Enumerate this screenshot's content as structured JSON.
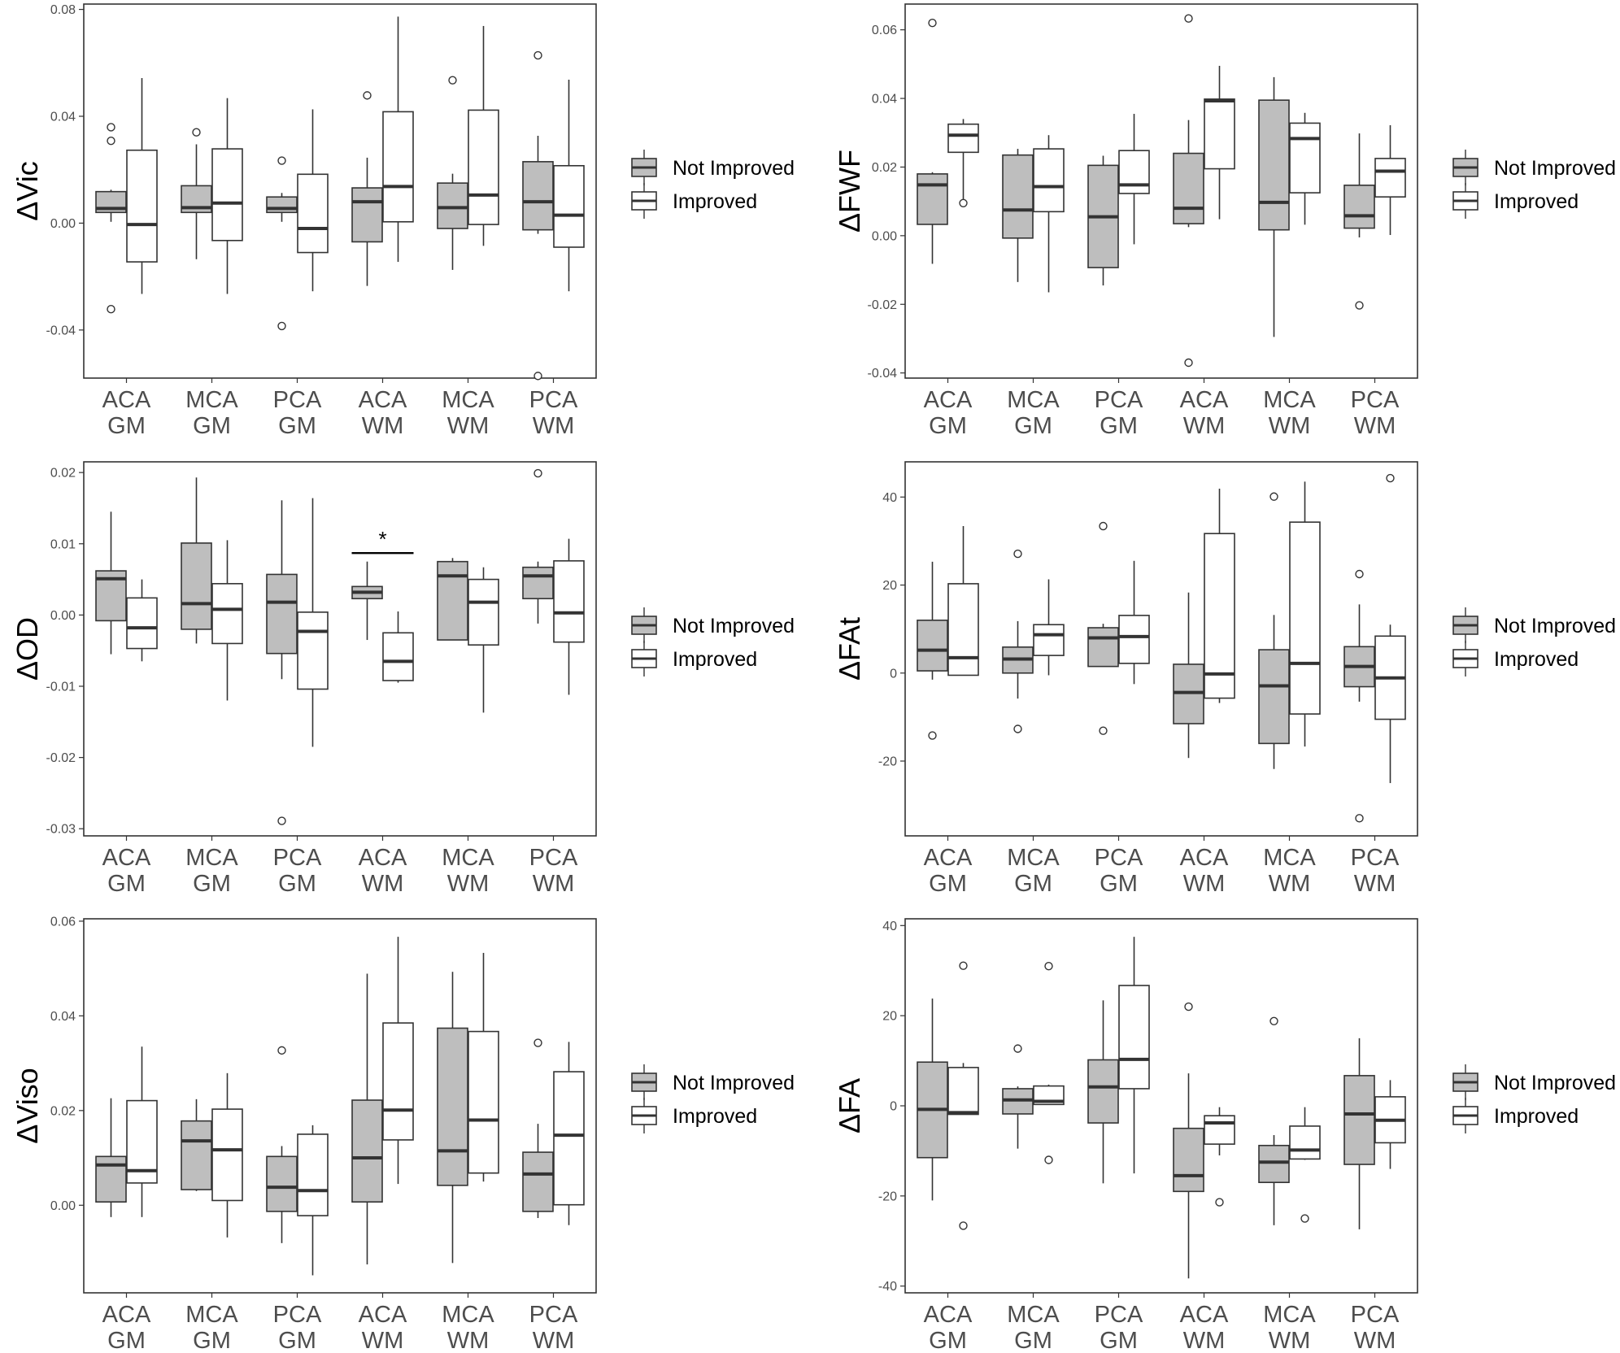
{
  "legend": {
    "labels": [
      "Not Improved",
      "Improved"
    ]
  },
  "colors": {
    "not_improved_fill": "#bebebe",
    "improved_fill": "#ffffff",
    "stroke": "#333333",
    "median": "#333333",
    "panel_border": "#333333"
  },
  "chart_data": [
    {
      "type": "box",
      "ylabel": "ΔVic",
      "ylim": [
        -0.058,
        0.082
      ],
      "yticks": [
        -0.04,
        0.0,
        0.04,
        0.08
      ],
      "ytick_labels": [
        "-0.04",
        "0.00",
        "0.04",
        "0.08"
      ],
      "categories": [
        "ACA\nGM",
        "MCA\nGM",
        "PCA\nGM",
        "ACA\nWM",
        "MCA\nWM",
        "PCA\nWM"
      ],
      "series": [
        {
          "name": "Not Improved",
          "boxes": [
            {
              "lw": 0.0005,
              "q1": 0.004,
              "med": 0.0055,
              "q3": 0.0118,
              "uw": 0.0125,
              "out": [
                0.0359,
                0.0308,
                -0.0322
              ]
            },
            {
              "lw": -0.0135,
              "q1": 0.004,
              "med": 0.0058,
              "q3": 0.014,
              "uw": 0.0295,
              "out": [
                0.034
              ]
            },
            {
              "lw": 0.0005,
              "q1": 0.004,
              "med": 0.0055,
              "q3": 0.0098,
              "uw": 0.0113,
              "out": [
                0.0234,
                -0.0385
              ]
            },
            {
              "lw": -0.0235,
              "q1": -0.007,
              "med": 0.008,
              "q3": 0.0132,
              "uw": 0.0245,
              "out": [
                0.0478
              ]
            },
            {
              "lw": -0.0175,
              "q1": -0.002,
              "med": 0.0058,
              "q3": 0.015,
              "uw": 0.0185,
              "out": [
                0.0535
              ]
            },
            {
              "lw": -0.004,
              "q1": -0.0025,
              "med": 0.008,
              "q3": 0.023,
              "uw": 0.0327,
              "out": [
                0.0628,
                -0.0572
              ]
            }
          ]
        },
        {
          "name": "Improved",
          "boxes": [
            {
              "lw": -0.0265,
              "q1": -0.0145,
              "med": -0.0005,
              "q3": 0.0273,
              "uw": 0.0543,
              "out": []
            },
            {
              "lw": -0.0265,
              "q1": -0.0065,
              "med": 0.0075,
              "q3": 0.0278,
              "uw": 0.0468,
              "out": []
            },
            {
              "lw": -0.0255,
              "q1": -0.011,
              "med": -0.002,
              "q3": 0.0183,
              "uw": 0.0426,
              "out": []
            },
            {
              "lw": -0.0145,
              "q1": 0.0005,
              "med": 0.0137,
              "q3": 0.0417,
              "uw": 0.0773,
              "out": []
            },
            {
              "lw": -0.0085,
              "q1": -0.0005,
              "med": 0.0105,
              "q3": 0.0423,
              "uw": 0.0738,
              "out": []
            },
            {
              "lw": -0.0255,
              "q1": -0.009,
              "med": 0.003,
              "q3": 0.0215,
              "uw": 0.0537,
              "out": []
            }
          ]
        }
      ],
      "annotation": null
    },
    {
      "type": "box",
      "ylabel": "ΔFWF",
      "ylim": [
        -0.0415,
        0.0675
      ],
      "yticks": [
        -0.04,
        -0.02,
        0.0,
        0.02,
        0.04,
        0.06
      ],
      "ytick_labels": [
        "-0.04",
        "-0.02",
        "0.00",
        "0.02",
        "0.04",
        "0.06"
      ],
      "categories": [
        "ACA\nGM",
        "MCA\nGM",
        "PCA\nGM",
        "ACA\nWM",
        "MCA\nWM",
        "PCA\nWM"
      ],
      "series": [
        {
          "name": "Not Improved",
          "boxes": [
            {
              "lw": -0.0082,
              "q1": 0.0033,
              "med": 0.0148,
              "q3": 0.018,
              "uw": 0.0185,
              "out": [
                0.062
              ]
            },
            {
              "lw": -0.0135,
              "q1": -0.0007,
              "med": 0.0075,
              "q3": 0.0235,
              "uw": 0.0253,
              "out": []
            },
            {
              "lw": -0.0145,
              "q1": -0.0093,
              "med": 0.0055,
              "q3": 0.0205,
              "uw": 0.0233,
              "out": []
            },
            {
              "lw": 0.0025,
              "q1": 0.0035,
              "med": 0.008,
              "q3": 0.024,
              "uw": 0.0337,
              "out": [
                0.0633,
                -0.037
              ]
            },
            {
              "lw": -0.0295,
              "q1": 0.0017,
              "med": 0.0097,
              "q3": 0.0395,
              "uw": 0.0462,
              "out": []
            },
            {
              "lw": -0.0005,
              "q1": 0.0022,
              "med": 0.0058,
              "q3": 0.0147,
              "uw": 0.0298,
              "out": [
                -0.0203
              ]
            }
          ]
        },
        {
          "name": "Improved",
          "boxes": [
            {
              "lw": 0.0095,
              "q1": 0.0243,
              "med": 0.0293,
              "q3": 0.0325,
              "uw": 0.034,
              "out": [
                0.0095
              ]
            },
            {
              "lw": -0.0165,
              "q1": 0.007,
              "med": 0.0143,
              "q3": 0.0253,
              "uw": 0.0293,
              "out": []
            },
            {
              "lw": -0.0025,
              "q1": 0.0123,
              "med": 0.0148,
              "q3": 0.0248,
              "uw": 0.0355,
              "out": []
            },
            {
              "lw": 0.0048,
              "q1": 0.0195,
              "med": 0.0393,
              "q3": 0.0398,
              "uw": 0.0495,
              "out": []
            },
            {
              "lw": 0.0032,
              "q1": 0.0125,
              "med": 0.0283,
              "q3": 0.0328,
              "uw": 0.0358,
              "out": []
            },
            {
              "lw": 0.0002,
              "q1": 0.0113,
              "med": 0.0188,
              "q3": 0.0225,
              "uw": 0.0322,
              "out": []
            }
          ]
        }
      ],
      "annotation": null
    },
    {
      "type": "box",
      "ylabel": "ΔOD",
      "ylim": [
        -0.031,
        0.0215
      ],
      "yticks": [
        -0.03,
        -0.02,
        -0.01,
        0.0,
        0.01,
        0.02
      ],
      "ytick_labels": [
        "-0.03",
        "-0.02",
        "-0.01",
        "0.00",
        "0.01",
        "0.02"
      ],
      "categories": [
        "ACA\nGM",
        "MCA\nGM",
        "PCA\nGM",
        "ACA\nWM",
        "MCA\nWM",
        "PCA\nWM"
      ],
      "series": [
        {
          "name": "Not Improved",
          "boxes": [
            {
              "lw": -0.0055,
              "q1": -0.0008,
              "med": 0.0051,
              "q3": 0.0062,
              "uw": 0.0145,
              "out": []
            },
            {
              "lw": -0.004,
              "q1": -0.002,
              "med": 0.0016,
              "q3": 0.0101,
              "uw": 0.0193,
              "out": []
            },
            {
              "lw": -0.009,
              "q1": -0.0054,
              "med": 0.0018,
              "q3": 0.0057,
              "uw": 0.0161,
              "out": [
                -0.0289
              ]
            },
            {
              "lw": -0.0035,
              "q1": 0.0023,
              "med": 0.0032,
              "q3": 0.004,
              "uw": 0.0075,
              "out": []
            },
            {
              "lw": -0.0035,
              "q1": -0.0035,
              "med": 0.0055,
              "q3": 0.0075,
              "uw": 0.008,
              "out": []
            },
            {
              "lw": -0.0012,
              "q1": 0.0023,
              "med": 0.0055,
              "q3": 0.0067,
              "uw": 0.0075,
              "out": [
                0.0199
              ]
            }
          ]
        },
        {
          "name": "Improved",
          "boxes": [
            {
              "lw": -0.0065,
              "q1": -0.0047,
              "med": -0.0018,
              "q3": 0.0024,
              "uw": 0.005,
              "out": []
            },
            {
              "lw": -0.012,
              "q1": -0.004,
              "med": 0.0008,
              "q3": 0.0044,
              "uw": 0.0105,
              "out": []
            },
            {
              "lw": -0.0185,
              "q1": -0.0104,
              "med": -0.0023,
              "q3": 0.0004,
              "uw": 0.0164,
              "out": []
            },
            {
              "lw": -0.0095,
              "q1": -0.0092,
              "med": -0.0065,
              "q3": -0.0025,
              "uw": 0.0005,
              "out": []
            },
            {
              "lw": -0.0137,
              "q1": -0.0042,
              "med": 0.0018,
              "q3": 0.005,
              "uw": 0.0067,
              "out": []
            },
            {
              "lw": -0.0112,
              "q1": -0.0038,
              "med": 0.0003,
              "q3": 0.0076,
              "uw": 0.0107,
              "out": []
            }
          ]
        }
      ],
      "annotation": {
        "text": "*",
        "category_index": 3,
        "y": 0.0087
      }
    },
    {
      "type": "box",
      "ylabel": "ΔFAt",
      "ylim": [
        -37,
        48
      ],
      "yticks": [
        -20,
        0,
        20,
        40
      ],
      "ytick_labels": [
        "-20",
        "0",
        "20",
        "40"
      ],
      "categories": [
        "ACA\nGM",
        "MCA\nGM",
        "PCA\nGM",
        "ACA\nWM",
        "MCA\nWM",
        "PCA\nWM"
      ],
      "series": [
        {
          "name": "Not Improved",
          "boxes": [
            {
              "lw": -1.5,
              "q1": 0.5,
              "med": 5.2,
              "q3": 12.0,
              "uw": 25.3,
              "out": [
                -14.2
              ]
            },
            {
              "lw": -5.8,
              "q1": 0.0,
              "med": 3.2,
              "q3": 5.9,
              "uw": 11.8,
              "out": [
                27.1,
                -12.7
              ]
            },
            {
              "lw": 1.5,
              "q1": 1.5,
              "med": 8.0,
              "q3": 10.3,
              "uw": 11.2,
              "out": [
                33.4,
                -13.1
              ]
            },
            {
              "lw": -19.3,
              "q1": -11.5,
              "med": -4.4,
              "q3": 2.0,
              "uw": 18.3,
              "out": []
            },
            {
              "lw": -21.8,
              "q1": -16.0,
              "med": -2.9,
              "q3": 5.3,
              "uw": 13.2,
              "out": [
                40.1
              ]
            },
            {
              "lw": -6.5,
              "q1": -3.1,
              "med": 1.5,
              "q3": 6.0,
              "uw": 15.6,
              "out": [
                22.5,
                -33.0
              ]
            }
          ]
        },
        {
          "name": "Improved",
          "boxes": [
            {
              "lw": -0.5,
              "q1": -0.5,
              "med": 3.5,
              "q3": 20.3,
              "uw": 33.4,
              "out": []
            },
            {
              "lw": -0.5,
              "q1": 4.0,
              "med": 8.7,
              "q3": 11.0,
              "uw": 21.3,
              "out": []
            },
            {
              "lw": -2.5,
              "q1": 2.2,
              "med": 8.3,
              "q3": 13.1,
              "uw": 25.5,
              "out": []
            },
            {
              "lw": -6.8,
              "q1": -5.7,
              "med": -0.2,
              "q3": 31.7,
              "uw": 41.9,
              "out": []
            },
            {
              "lw": -16.7,
              "q1": -9.3,
              "med": 2.2,
              "q3": 34.3,
              "uw": 43.5,
              "out": []
            },
            {
              "lw": -25.0,
              "q1": -10.5,
              "med": -1.1,
              "q3": 8.4,
              "uw": 11.0,
              "out": [
                44.3
              ]
            }
          ]
        }
      ],
      "annotation": null
    },
    {
      "type": "box",
      "ylabel": "ΔViso",
      "ylim": [
        -0.0185,
        0.0605
      ],
      "yticks": [
        0.0,
        0.02,
        0.04,
        0.06
      ],
      "ytick_labels": [
        "0.00",
        "0.02",
        "0.04",
        "0.06"
      ],
      "categories": [
        "ACA\nGM",
        "MCA\nGM",
        "PCA\nGM",
        "ACA\nWM",
        "MCA\nWM",
        "PCA\nWM"
      ],
      "series": [
        {
          "name": "Not Improved",
          "boxes": [
            {
              "lw": -0.0025,
              "q1": 0.0007,
              "med": 0.0085,
              "q3": 0.0103,
              "uw": 0.0226,
              "out": []
            },
            {
              "lw": 0.003,
              "q1": 0.0033,
              "med": 0.0136,
              "q3": 0.0178,
              "uw": 0.0224,
              "out": []
            },
            {
              "lw": -0.008,
              "q1": -0.0013,
              "med": 0.0038,
              "q3": 0.0103,
              "uw": 0.0125,
              "out": [
                0.0327
              ]
            },
            {
              "lw": -0.0125,
              "q1": 0.0007,
              "med": 0.01,
              "q3": 0.0222,
              "uw": 0.0489,
              "out": []
            },
            {
              "lw": -0.0122,
              "q1": 0.0042,
              "med": 0.0115,
              "q3": 0.0374,
              "uw": 0.0493,
              "out": []
            },
            {
              "lw": -0.0027,
              "q1": -0.0013,
              "med": 0.0066,
              "q3": 0.0112,
              "uw": 0.0172,
              "out": [
                0.0343
              ]
            }
          ]
        },
        {
          "name": "Improved",
          "boxes": [
            {
              "lw": -0.0025,
              "q1": 0.0047,
              "med": 0.0073,
              "q3": 0.0221,
              "uw": 0.0335,
              "out": []
            },
            {
              "lw": -0.0068,
              "q1": 0.001,
              "med": 0.0117,
              "q3": 0.0203,
              "uw": 0.0279,
              "out": []
            },
            {
              "lw": -0.0148,
              "q1": -0.0022,
              "med": 0.0031,
              "q3": 0.015,
              "uw": 0.0169,
              "out": []
            },
            {
              "lw": 0.0045,
              "q1": 0.0138,
              "med": 0.0201,
              "q3": 0.0385,
              "uw": 0.0567,
              "out": []
            },
            {
              "lw": 0.005,
              "q1": 0.0068,
              "med": 0.018,
              "q3": 0.0367,
              "uw": 0.0533,
              "out": []
            },
            {
              "lw": -0.0042,
              "q1": 0.0001,
              "med": 0.0148,
              "q3": 0.0282,
              "uw": 0.0345,
              "out": []
            }
          ]
        }
      ],
      "annotation": null
    },
    {
      "type": "box",
      "ylabel": "ΔFA",
      "ylim": [
        -41.5,
        41.5
      ],
      "yticks": [
        -40,
        -20,
        0,
        20,
        40
      ],
      "ytick_labels": [
        "-40",
        "-20",
        "0",
        "20",
        "40"
      ],
      "categories": [
        "ACA\nGM",
        "MCA\nGM",
        "PCA\nGM",
        "ACA\nWM",
        "MCA\nWM",
        "PCA\nWM"
      ],
      "series": [
        {
          "name": "Not Improved",
          "boxes": [
            {
              "lw": -21.0,
              "q1": -11.5,
              "med": -0.8,
              "q3": 9.7,
              "uw": 23.8,
              "out": []
            },
            {
              "lw": -9.5,
              "q1": -1.8,
              "med": 1.3,
              "q3": 3.8,
              "uw": 4.3,
              "out": [
                12.7
              ]
            },
            {
              "lw": -17.2,
              "q1": -3.8,
              "med": 4.2,
              "q3": 10.2,
              "uw": 23.4,
              "out": []
            },
            {
              "lw": -38.3,
              "q1": -19.0,
              "med": -15.5,
              "q3": -5.0,
              "uw": 7.2,
              "out": [
                22.0
              ]
            },
            {
              "lw": -26.5,
              "q1": -17.0,
              "med": -12.5,
              "q3": -8.8,
              "uw": -6.5,
              "out": [
                18.8
              ]
            },
            {
              "lw": -27.4,
              "q1": -13.0,
              "med": -1.8,
              "q3": 6.7,
              "uw": 15.0,
              "out": []
            }
          ]
        },
        {
          "name": "Improved",
          "boxes": [
            {
              "lw": -1.5,
              "q1": -1.9,
              "med": -1.5,
              "q3": 8.5,
              "uw": 9.5,
              "out": [
                31.1,
                -26.6
              ]
            },
            {
              "lw": 0.3,
              "q1": 0.3,
              "med": 1.0,
              "q3": 4.4,
              "uw": 4.7,
              "out": [
                31.0,
                -12.0
              ]
            },
            {
              "lw": -15.0,
              "q1": 3.8,
              "med": 10.3,
              "q3": 26.7,
              "uw": 37.5,
              "out": []
            },
            {
              "lw": -11.0,
              "q1": -8.5,
              "med": -3.8,
              "q3": -2.2,
              "uw": -0.3,
              "out": [
                -21.4
              ]
            },
            {
              "lw": -12.0,
              "q1": -11.8,
              "med": -9.8,
              "q3": -4.5,
              "uw": -0.3,
              "out": [
                -25.0
              ]
            },
            {
              "lw": -14.0,
              "q1": -8.2,
              "med": -3.2,
              "q3": 2.0,
              "uw": 5.7,
              "out": []
            }
          ]
        }
      ],
      "annotation": null
    }
  ]
}
